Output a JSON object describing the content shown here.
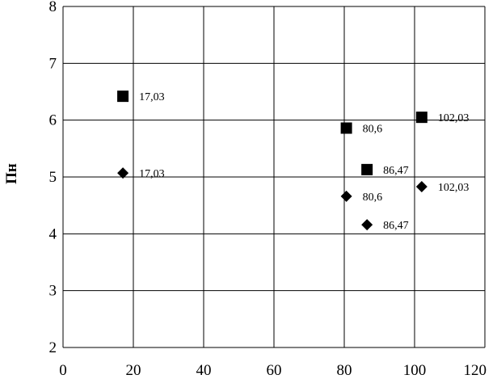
{
  "chart_data": {
    "type": "scatter",
    "title": "",
    "xlabel": "",
    "ylabel": "Пн",
    "xlim": [
      0,
      120
    ],
    "ylim": [
      2,
      8
    ],
    "x_ticks": [
      0,
      20,
      40,
      60,
      80,
      100,
      120
    ],
    "y_ticks": [
      2,
      3,
      4,
      5,
      6,
      7,
      8
    ],
    "grid": true,
    "legend": "none",
    "series": [
      {
        "marker": "square",
        "color": "#000000",
        "points": [
          {
            "x": 17.03,
            "y": 6.42,
            "label": "17,03"
          },
          {
            "x": 80.6,
            "y": 5.86,
            "label": "80,6"
          },
          {
            "x": 86.47,
            "y": 5.13,
            "label": "86,47"
          },
          {
            "x": 102.03,
            "y": 6.05,
            "label": "102,03"
          }
        ]
      },
      {
        "marker": "diamond",
        "color": "#000000",
        "points": [
          {
            "x": 17.03,
            "y": 5.07,
            "label": "17,03"
          },
          {
            "x": 80.6,
            "y": 4.66,
            "label": "80,6"
          },
          {
            "x": 86.47,
            "y": 4.16,
            "label": "86,47"
          },
          {
            "x": 102.03,
            "y": 4.83,
            "label": "102,03"
          }
        ]
      }
    ]
  }
}
